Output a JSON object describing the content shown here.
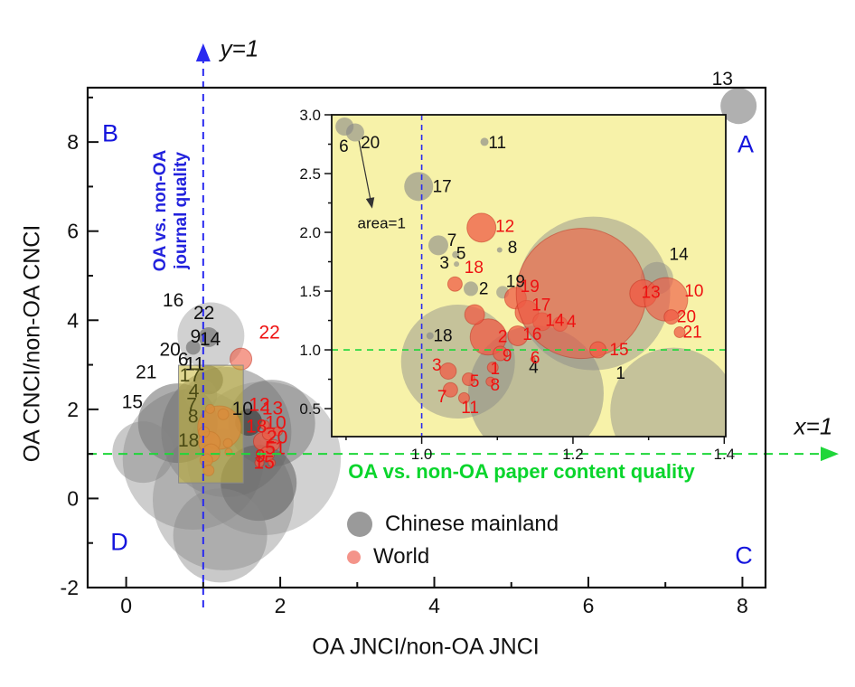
{
  "figure": {
    "corners": {
      "tl": "B",
      "tr": "A",
      "br": "C",
      "bl": "D"
    },
    "guides": {
      "vline_label": "y=1",
      "hline_label": "x=1",
      "vline_caption_line1": "OA vs. non-OA",
      "vline_caption_line2": "journal quality",
      "hline_caption": "OA vs. non-OA paper content quality",
      "vline_color": "#2a2af0",
      "hline_color": "#1fd63a"
    },
    "legend": [
      {
        "label": "Chinese mainland",
        "color": "#9a9a9a",
        "r": 14
      },
      {
        "label": "World",
        "color": "#f4948a",
        "r": 7.5
      }
    ],
    "colors": {
      "gray_series": "#878787",
      "red_series": "#ef5b45",
      "red_label": "#ee1111",
      "olive_label": "#4a4a14",
      "black_label": "#111111",
      "inset_bg": "#f7f2a9",
      "zoom_rect": "#c6b637"
    }
  },
  "chart_data": {
    "type": "scatter",
    "title": "",
    "xlabel": "OA JNCI/non-OA JNCI",
    "ylabel": "OA CNCI/non-OA CNCI",
    "legend_entries": [
      "Chinese mainland",
      "World"
    ],
    "main": {
      "xlim": [
        -0.5,
        8.3
      ],
      "ylim": [
        -2,
        9.22
      ],
      "frame": {
        "l": 97,
        "t": 97,
        "r": 847,
        "b": 650
      },
      "xticks": [
        0,
        2,
        4,
        6,
        8
      ],
      "xminor": [
        1,
        3,
        5,
        7
      ],
      "yticks": [
        8,
        6,
        4,
        2,
        0,
        -2
      ],
      "yminor": [
        9,
        7,
        5,
        3,
        1,
        -1
      ],
      "vline_x": 1.0,
      "hline_y": 1.0,
      "zoom_rect": {
        "x1": 0.68,
        "x2": 1.52,
        "y1": 0.35,
        "y2": 2.99,
        "opacity": 0.55
      },
      "series": [
        {
          "name": "Chinese mainland",
          "color": "#878787",
          "points": [
            {
              "x": 1.1,
              "y": 3.65,
              "r": 37,
              "o": 0.45,
              "c": "#9a9a9a"
            },
            {
              "x": 1.07,
              "y": 3.62,
              "r": 11,
              "o": 0.6,
              "c": "#666666"
            },
            {
              "x": 0.87,
              "y": 3.39,
              "r": 8,
              "o": 0.6,
              "c": "#666666"
            },
            {
              "x": 1.3,
              "y": 1.49,
              "r": 72,
              "o": 0.5,
              "c": "#777777"
            },
            {
              "x": 0.87,
              "y": 0.88,
              "r": 78,
              "o": 0.42
            },
            {
              "x": 1.79,
              "y": 0.9,
              "r": 85,
              "o": 0.38
            },
            {
              "x": 1.26,
              "y": -0.03,
              "r": 78,
              "o": 0.42
            },
            {
              "x": 1.89,
              "y": 1.69,
              "r": 48,
              "o": 0.5,
              "c": "#777777"
            },
            {
              "x": 0.67,
              "y": 1.69,
              "r": 44,
              "o": 0.55,
              "c": "#6a6a6a"
            },
            {
              "x": 1.72,
              "y": 0.35,
              "r": 42,
              "o": 0.55,
              "c": "#5d5d5d"
            },
            {
              "x": 0.22,
              "y": 1.04,
              "r": 34,
              "o": 0.45
            },
            {
              "x": 1.22,
              "y": -0.83,
              "r": 52,
              "o": 0.45
            },
            {
              "x": 1.07,
              "y": 2.66,
              "r": 16,
              "o": 0.6,
              "c": "#555555"
            },
            {
              "x": 0.97,
              "y": 2.32,
              "r": 18,
              "o": 0.5
            },
            {
              "x": 1.59,
              "y": 1.71,
              "r": 15,
              "o": 0.7,
              "c": "#3f3f3f"
            },
            {
              "x": 7.95,
              "y": 8.81,
              "r": 20,
              "o": 0.85,
              "c": "#a2a2a2"
            }
          ]
        },
        {
          "name": "World",
          "color": "#ef5b45",
          "points": [
            {
              "x": 1.49,
              "y": 3.13,
              "r": 12,
              "o": 0.6
            },
            {
              "x": 1.21,
              "y": 1.59,
              "r": 24,
              "o": 0.8
            },
            {
              "x": 1.08,
              "y": 1.26,
              "r": 12,
              "o": 0.8
            },
            {
              "x": 1.1,
              "y": 1.02,
              "r": 10,
              "o": 0.8
            },
            {
              "x": 1.04,
              "y": 0.86,
              "r": 7,
              "o": 0.8
            },
            {
              "x": 1.07,
              "y": 0.63,
              "r": 6,
              "o": 0.8
            },
            {
              "x": 1.09,
              "y": 2.01,
              "r": 5,
              "o": 0.8
            },
            {
              "x": 1.01,
              "y": 1.49,
              "r": 6,
              "o": 0.8
            },
            {
              "x": 1.32,
              "y": 1.24,
              "r": 5,
              "o": 0.8
            },
            {
              "x": 1.33,
              "y": 1.04,
              "r": 4,
              "o": 0.8
            },
            {
              "x": 1.26,
              "y": 1.89,
              "r": 6,
              "o": 0.8
            },
            {
              "x": 1.77,
              "y": 1.28,
              "r": 10,
              "o": 0.75
            },
            {
              "x": 1.85,
              "y": 1.45,
              "r": 7,
              "o": 0.75
            },
            {
              "x": 1.92,
              "y": 1.2,
              "r": 6,
              "o": 0.75
            },
            {
              "x": 1.83,
              "y": 1.0,
              "r": 8,
              "o": 0.75
            },
            {
              "x": 1.73,
              "y": 0.8,
              "r": 5,
              "o": 0.75
            },
            {
              "x": 1.89,
              "y": 0.8,
              "r": 4,
              "o": 0.75
            },
            {
              "x": 1.97,
              "y": 1.51,
              "r": 5,
              "o": 0.75
            },
            {
              "x": 1.8,
              "y": 1.65,
              "r": 5,
              "o": 0.75
            }
          ]
        }
      ],
      "labels": [
        {
          "t": "16",
          "x": 0.61,
          "y": 4.45
        },
        {
          "t": "22",
          "x": 1.01,
          "y": 4.17
        },
        {
          "t": "9",
          "x": 0.9,
          "y": 3.64
        },
        {
          "t": "14",
          "x": 1.09,
          "y": 3.58
        },
        {
          "t": "20",
          "x": 0.57,
          "y": 3.35
        },
        {
          "t": "6",
          "x": 0.74,
          "y": 3.12
        },
        {
          "t": "11",
          "x": 0.89,
          "y": 3.02
        },
        {
          "t": "21",
          "x": 0.26,
          "y": 2.84
        },
        {
          "t": "15",
          "x": 0.08,
          "y": 2.17
        },
        {
          "t": "17",
          "x": 0.83,
          "y": 2.77,
          "c": "olive"
        },
        {
          "t": "4",
          "x": 0.88,
          "y": 2.41,
          "c": "olive"
        },
        {
          "t": "7",
          "x": 0.85,
          "y": 2.11,
          "c": "olive"
        },
        {
          "t": "8",
          "x": 0.87,
          "y": 1.84,
          "c": "olive"
        },
        {
          "t": "18",
          "x": 0.81,
          "y": 1.31,
          "c": "olive"
        },
        {
          "t": "10",
          "x": 1.51,
          "y": 2.02
        },
        {
          "t": "13",
          "x": 7.74,
          "y": 9.42
        },
        {
          "t": "22",
          "x": 1.86,
          "y": 3.73,
          "c": "red"
        },
        {
          "t": "12",
          "x": 1.73,
          "y": 2.11,
          "c": "red"
        },
        {
          "t": "13",
          "x": 1.9,
          "y": 2.03,
          "c": "red"
        },
        {
          "t": "10",
          "x": 1.94,
          "y": 1.7,
          "c": "red"
        },
        {
          "t": "18",
          "x": 1.69,
          "y": 1.62,
          "c": "red"
        },
        {
          "t": "20",
          "x": 1.96,
          "y": 1.38,
          "c": "red"
        },
        {
          "t": "5",
          "x": 1.87,
          "y": 1.13,
          "c": "red"
        },
        {
          "t": "1",
          "x": 2.0,
          "y": 1.13,
          "c": "red"
        },
        {
          "t": "9",
          "x": 1.74,
          "y": 0.95,
          "c": "red"
        },
        {
          "t": "15",
          "x": 1.79,
          "y": 0.81,
          "c": "red"
        }
      ]
    },
    "inset": {
      "xlim": [
        0.881,
        1.402
      ],
      "ylim": [
        0.262,
        3.0
      ],
      "frame": {
        "l": 367,
        "t": 127,
        "r": 803,
        "b": 483
      },
      "xticks": [
        1.0,
        1.2,
        1.4
      ],
      "xminor": [
        0.9,
        1.1,
        1.3
      ],
      "yticks": [
        3.0,
        2.5,
        2.0,
        1.5,
        1.0,
        0.5
      ],
      "yminor": [
        2.75,
        2.25,
        1.75,
        1.25,
        0.75
      ],
      "vline_x": 1.0,
      "hline_y": 1.0,
      "annotation": {
        "text": "area=1",
        "tx": 0.947,
        "ty": 2.08,
        "ax1": 0.917,
        "ay1": 2.78,
        "ax2": 0.934,
        "ay2": 2.22
      },
      "series": [
        {
          "name": "Chinese mainland",
          "color": "#878787",
          "points": [
            {
              "x": 0.898,
              "y": 2.9,
              "r": 10,
              "o": 0.6
            },
            {
              "x": 0.912,
              "y": 2.85,
              "r": 10,
              "o": 0.6
            },
            {
              "x": 1.083,
              "y": 2.77,
              "r": 4.5,
              "o": 0.65
            },
            {
              "x": 0.996,
              "y": 2.39,
              "r": 16,
              "o": 0.6
            },
            {
              "x": 1.022,
              "y": 1.89,
              "r": 11,
              "o": 0.6
            },
            {
              "x": 1.045,
              "y": 1.81,
              "r": 4,
              "o": 0.6
            },
            {
              "x": 1.046,
              "y": 1.73,
              "r": 3,
              "o": 0.6
            },
            {
              "x": 1.103,
              "y": 1.85,
              "r": 3,
              "o": 0.65
            },
            {
              "x": 1.065,
              "y": 1.52,
              "r": 8,
              "o": 0.6
            },
            {
              "x": 1.107,
              "y": 1.49,
              "r": 7,
              "o": 0.55
            },
            {
              "x": 1.011,
              "y": 1.12,
              "r": 4,
              "o": 0.65
            },
            {
              "x": 1.227,
              "y": 1.48,
              "r": 85,
              "o": 0.45
            },
            {
              "x": 1.151,
              "y": 0.63,
              "r": 75,
              "o": 0.5
            },
            {
              "x": 1.048,
              "y": 0.9,
              "r": 63,
              "o": 0.45
            },
            {
              "x": 1.333,
              "y": 0.48,
              "r": 70,
              "o": 0.45
            },
            {
              "x": 1.311,
              "y": 1.61,
              "r": 18,
              "o": 0.45
            }
          ]
        },
        {
          "name": "World",
          "color": "#ef5b45",
          "points": [
            {
              "x": 1.079,
              "y": 2.04,
              "r": 16,
              "o": 0.75
            },
            {
              "x": 1.044,
              "y": 1.56,
              "r": 8,
              "o": 0.75
            },
            {
              "x": 1.124,
              "y": 1.44,
              "r": 12,
              "o": 0.75
            },
            {
              "x": 1.139,
              "y": 1.32,
              "r": 13,
              "o": 0.75
            },
            {
              "x": 1.159,
              "y": 1.24,
              "r": 10,
              "o": 0.75
            },
            {
              "x": 1.183,
              "y": 1.22,
              "r": 8,
              "o": 0.7
            },
            {
              "x": 1.127,
              "y": 1.12,
              "r": 11,
              "o": 0.75
            },
            {
              "x": 1.088,
              "y": 1.11,
              "r": 20,
              "o": 0.75
            },
            {
              "x": 1.07,
              "y": 1.3,
              "r": 11,
              "o": 0.75
            },
            {
              "x": 1.104,
              "y": 0.97,
              "r": 8,
              "o": 0.75
            },
            {
              "x": 1.094,
              "y": 0.85,
              "r": 6,
              "o": 0.75
            },
            {
              "x": 1.091,
              "y": 0.73,
              "r": 5,
              "o": 0.75
            },
            {
              "x": 1.062,
              "y": 0.75,
              "r": 7,
              "o": 0.75
            },
            {
              "x": 1.056,
              "y": 0.59,
              "r": 6,
              "o": 0.75
            },
            {
              "x": 1.038,
              "y": 0.66,
              "r": 8,
              "o": 0.75
            },
            {
              "x": 1.035,
              "y": 0.82,
              "r": 9,
              "o": 0.75
            },
            {
              "x": 1.147,
              "y": 0.92,
              "r": 2.5,
              "o": 0.85
            },
            {
              "x": 1.211,
              "y": 1.48,
              "r": 72,
              "o": 0.6
            },
            {
              "x": 1.293,
              "y": 1.48,
              "r": 15,
              "o": 0.75
            },
            {
              "x": 1.323,
              "y": 1.43,
              "r": 24,
              "o": 0.65
            },
            {
              "x": 1.33,
              "y": 1.28,
              "r": 8,
              "o": 0.75
            },
            {
              "x": 1.341,
              "y": 1.15,
              "r": 6,
              "o": 0.75
            },
            {
              "x": 1.233,
              "y": 1.0,
              "r": 9,
              "o": 0.75
            }
          ]
        }
      ],
      "labels": [
        {
          "t": "6",
          "x": 0.897,
          "y": 2.73
        },
        {
          "t": "20",
          "x": 0.932,
          "y": 2.76
        },
        {
          "t": "11",
          "x": 1.1,
          "y": 2.76
        },
        {
          "t": "17",
          "x": 1.027,
          "y": 2.39
        },
        {
          "t": "7",
          "x": 1.04,
          "y": 1.93
        },
        {
          "t": "5",
          "x": 1.052,
          "y": 1.82
        },
        {
          "t": "3",
          "x": 1.03,
          "y": 1.74
        },
        {
          "t": "8",
          "x": 1.12,
          "y": 1.87
        },
        {
          "t": "2",
          "x": 1.082,
          "y": 1.52
        },
        {
          "t": "19",
          "x": 1.124,
          "y": 1.58
        },
        {
          "t": "18",
          "x": 1.028,
          "y": 1.12
        },
        {
          "t": "4",
          "x": 1.148,
          "y": 0.85
        },
        {
          "t": "14",
          "x": 1.34,
          "y": 1.81
        },
        {
          "t": "1",
          "x": 1.263,
          "y": 0.8
        },
        {
          "t": "12",
          "x": 1.11,
          "y": 2.05,
          "c": "red"
        },
        {
          "t": "18",
          "x": 1.069,
          "y": 1.7,
          "c": "red"
        },
        {
          "t": "19",
          "x": 1.143,
          "y": 1.54,
          "c": "red"
        },
        {
          "t": "17",
          "x": 1.158,
          "y": 1.38,
          "c": "red"
        },
        {
          "t": "14",
          "x": 1.176,
          "y": 1.25,
          "c": "red"
        },
        {
          "t": "4",
          "x": 1.198,
          "y": 1.24,
          "c": "red"
        },
        {
          "t": "16",
          "x": 1.146,
          "y": 1.13,
          "c": "red"
        },
        {
          "t": "2",
          "x": 1.107,
          "y": 1.11,
          "c": "red"
        },
        {
          "t": "9",
          "x": 1.113,
          "y": 0.95,
          "c": "red"
        },
        {
          "t": "6",
          "x": 1.15,
          "y": 0.93,
          "c": "red"
        },
        {
          "t": "1",
          "x": 1.097,
          "y": 0.84,
          "c": "red"
        },
        {
          "t": "8",
          "x": 1.097,
          "y": 0.7,
          "c": "red"
        },
        {
          "t": "5",
          "x": 1.07,
          "y": 0.73,
          "c": "red"
        },
        {
          "t": "11",
          "x": 1.064,
          "y": 0.51,
          "c": "red"
        },
        {
          "t": "7",
          "x": 1.027,
          "y": 0.6,
          "c": "red"
        },
        {
          "t": "3",
          "x": 1.02,
          "y": 0.87,
          "c": "red"
        },
        {
          "t": "13",
          "x": 1.303,
          "y": 1.49,
          "c": "red"
        },
        {
          "t": "10",
          "x": 1.36,
          "y": 1.5,
          "c": "red"
        },
        {
          "t": "20",
          "x": 1.35,
          "y": 1.28,
          "c": "red"
        },
        {
          "t": "21",
          "x": 1.358,
          "y": 1.15,
          "c": "red"
        },
        {
          "t": "15",
          "x": 1.261,
          "y": 1.0,
          "c": "red"
        }
      ]
    }
  }
}
